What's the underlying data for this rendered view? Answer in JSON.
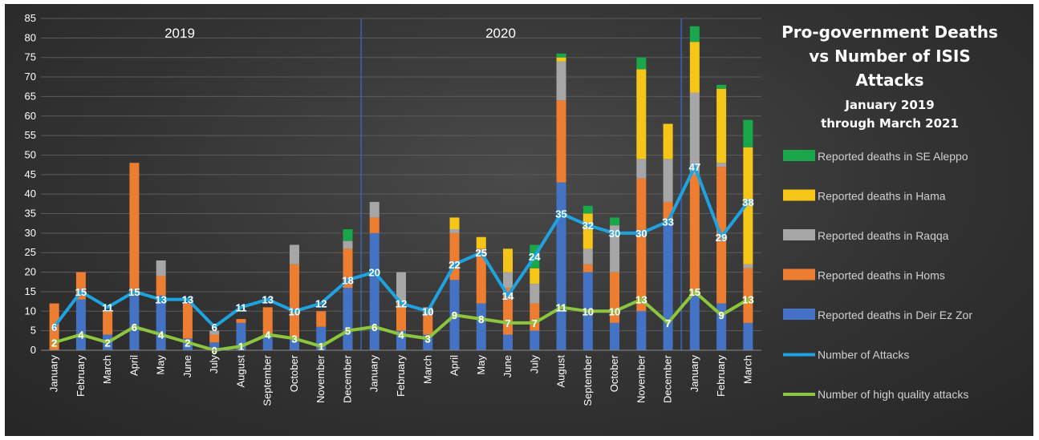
{
  "chart_data": {
    "type": "bar",
    "title": "Pro-government Deaths vs Number of ISIS Attacks",
    "title_lines": [
      "Pro-government Deaths",
      "vs Number of ISIS",
      "Attacks"
    ],
    "subtitle_lines": [
      "January 2019",
      "through March 2021"
    ],
    "year_labels": [
      "2019",
      "2020"
    ],
    "ylim": [
      0,
      85
    ],
    "yticks": [
      0,
      5,
      10,
      15,
      20,
      25,
      30,
      35,
      40,
      45,
      50,
      55,
      60,
      65,
      70,
      75,
      80,
      85
    ],
    "grid": true,
    "legend_position": "right",
    "categories": [
      "January",
      "February",
      "March",
      "April",
      "May",
      "June",
      "July",
      "August",
      "September",
      "October",
      "November",
      "December",
      "January",
      "February",
      "March",
      "April",
      "May",
      "June",
      "July",
      "August",
      "September",
      "October",
      "November",
      "December",
      "January",
      "February",
      "March"
    ],
    "series": [
      {
        "name": "Reported deaths in SE Aleppo",
        "kind": "bar",
        "color": "#1aa64a",
        "values": [
          0,
          0,
          0,
          0,
          0,
          0,
          0,
          0,
          0,
          0,
          0,
          3,
          0,
          0,
          0,
          0,
          0,
          0,
          6,
          1,
          2,
          2,
          3,
          0,
          4,
          1,
          7
        ]
      },
      {
        "name": "Reported deaths in Hama",
        "kind": "bar",
        "color": "#f5c518",
        "values": [
          0,
          0,
          0,
          0,
          0,
          0,
          0,
          0,
          0,
          0,
          0,
          0,
          0,
          0,
          0,
          3,
          3,
          6,
          4,
          1,
          9,
          0,
          23,
          9,
          13,
          19,
          30
        ]
      },
      {
        "name": "Reported deaths in Raqqa",
        "kind": "bar",
        "color": "#a6a6a6",
        "values": [
          0,
          0,
          0,
          0,
          4,
          0,
          1,
          0,
          0,
          5,
          0,
          2,
          4,
          8,
          2,
          1,
          0,
          4,
          5,
          10,
          4,
          12,
          5,
          11,
          21,
          1,
          1
        ]
      },
      {
        "name": "Reported deaths in Homs",
        "kind": "bar",
        "color": "#ed7d31",
        "values": [
          12,
          7,
          6,
          34,
          5,
          9,
          2,
          1,
          7,
          19,
          4,
          10,
          4,
          7,
          5,
          12,
          14,
          12,
          7,
          21,
          2,
          13,
          34,
          5,
          31,
          35,
          14
        ]
      },
      {
        "name": "Reported deaths in Deir Ez Zor",
        "kind": "bar",
        "color": "#4472c4",
        "values": [
          0,
          13,
          4,
          14,
          14,
          3,
          2,
          7,
          4,
          3,
          6,
          16,
          30,
          5,
          4,
          18,
          12,
          4,
          5,
          43,
          20,
          7,
          10,
          33,
          14,
          12,
          7
        ]
      },
      {
        "name": "Number of Attacks",
        "kind": "line",
        "color": "#1fa3e0",
        "values": [
          6,
          15,
          11,
          15,
          13,
          13,
          6,
          11,
          13,
          10,
          12,
          18,
          20,
          12,
          10,
          22,
          25,
          14,
          24,
          35,
          32,
          30,
          30,
          33,
          47,
          29,
          38
        ]
      },
      {
        "name": "Number of high quality attacks",
        "kind": "line",
        "color": "#8cc63f",
        "values": [
          2,
          4,
          2,
          6,
          4,
          2,
          0,
          1,
          4,
          3,
          1,
          5,
          6,
          4,
          3,
          9,
          8,
          7,
          7,
          11,
          10,
          10,
          13,
          7,
          15,
          9,
          13
        ]
      }
    ]
  }
}
